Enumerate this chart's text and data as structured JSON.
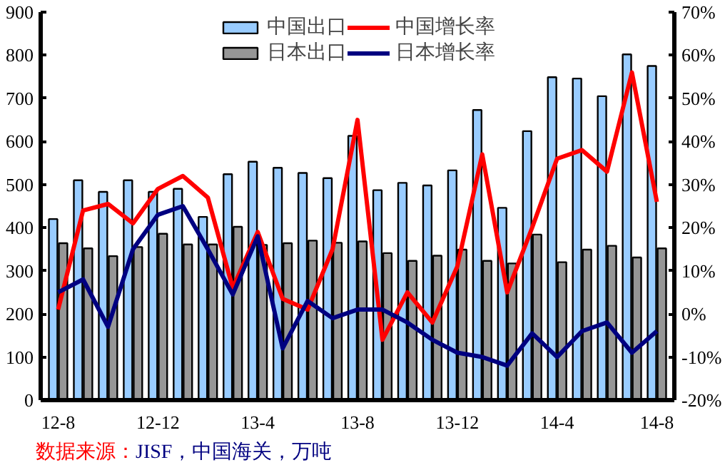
{
  "chart_data": {
    "type": "bar",
    "categories": [
      "12-8",
      null,
      null,
      null,
      "12-12",
      null,
      null,
      null,
      "13-4",
      null,
      null,
      null,
      "13-8",
      null,
      null,
      null,
      "13-12",
      null,
      null,
      null,
      "14-4",
      null,
      null,
      null,
      "14-8"
    ],
    "series": [
      {
        "name": "中国出口",
        "color": "#99ccff",
        "values": [
          420,
          510,
          483,
          510,
          483,
          490,
          425,
          524,
          553,
          539,
          527,
          515,
          613,
          487,
          504,
          498,
          533,
          673,
          446,
          624,
          749,
          746,
          705,
          802,
          775
        ]
      },
      {
        "name": "日本出口",
        "color": "#969696",
        "values": [
          364,
          352,
          334,
          355,
          386,
          361,
          361,
          402,
          360,
          364,
          370,
          365,
          368,
          341,
          323,
          335,
          349,
          323,
          317,
          384,
          320,
          349,
          358,
          331,
          352
        ]
      },
      {
        "name": "中国增长率",
        "type": "line",
        "axis": "y2",
        "color": "#ff0000",
        "values": [
          1,
          24,
          25.5,
          21,
          29,
          32,
          27,
          6,
          19,
          3.5,
          1,
          15,
          45,
          -6,
          5,
          -2,
          11,
          37,
          5,
          20,
          36,
          38,
          33,
          56,
          26
        ]
      },
      {
        "name": "日本增长率",
        "type": "line",
        "axis": "y2",
        "color": "#000080",
        "values": [
          5,
          8,
          -3,
          15,
          23,
          25,
          15,
          4.5,
          18,
          -8,
          3,
          -1,
          1,
          1,
          -2,
          -6,
          -9,
          -10,
          -12,
          -4.5,
          -10,
          -4,
          -2,
          -9,
          -4
        ]
      }
    ],
    "ylim": [
      0,
      900
    ],
    "yticks": [
      0,
      100,
      200,
      300,
      400,
      500,
      600,
      700,
      800,
      900
    ],
    "y2lim": [
      -20,
      70
    ],
    "y2ticks": [
      {
        "value": -20,
        "label": "-20%"
      },
      {
        "value": -10,
        "label": "-10%"
      },
      {
        "value": 0,
        "label": "0%"
      },
      {
        "value": 10,
        "label": "10%"
      },
      {
        "value": 20,
        "label": "20%"
      },
      {
        "value": 30,
        "label": "30%"
      },
      {
        "value": 40,
        "label": "40%"
      },
      {
        "value": 50,
        "label": "50%"
      },
      {
        "value": 60,
        "label": "60%"
      },
      {
        "value": 70,
        "label": "70%"
      }
    ],
    "legend": "top",
    "grid": false,
    "annotations": [
      "数据来源：JISF，中国海关，万吨"
    ]
  }
}
